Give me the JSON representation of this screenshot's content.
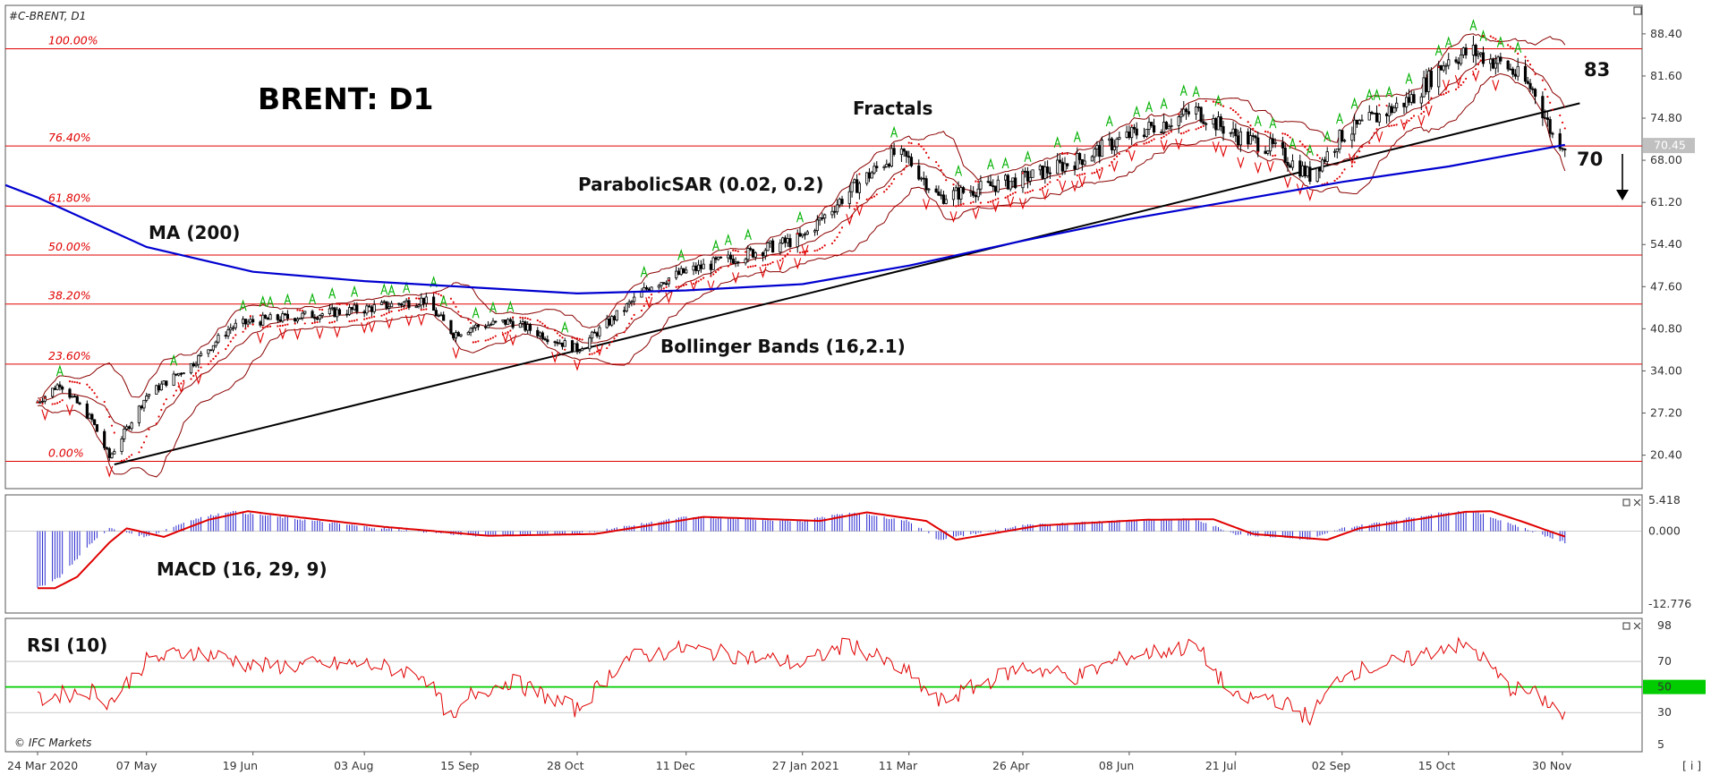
{
  "header": {
    "symbol": "#C-BRENT, D1"
  },
  "title": "BRENT: D1",
  "branding": "© IFC Markets",
  "corner_glyph": "[ i ]",
  "annotations": {
    "fractals": "Fractals",
    "parabolic_sar": "ParabolicSAR (0.02, 0.2)",
    "ma": "MA (200)",
    "bollinger": "Bollinger Bands (16,2.1)",
    "macd": "MACD (16, 29, 9)",
    "rsi": "RSI (10)",
    "resistance_level": "83",
    "support_level": "70"
  },
  "colors": {
    "fib_lines": "#e00000",
    "ma200": "#0000d0",
    "bollinger": "#8b0000",
    "sar": "#e00000",
    "fractal_up": "#00b000",
    "fractal_down": "#e00000",
    "trendline": "#000000",
    "macd_hist": "#2a2ad0",
    "macd_signal": "#e00000",
    "rsi_line": "#e00000",
    "rsi_mid": "#00cc00",
    "price_tag_bg": "#c0c0c0"
  },
  "chart_data": [
    {
      "type": "candlestick",
      "title": "BRENT: D1",
      "ylim": [
        15.0,
        93.0
      ],
      "y_ticks": [
        "88.40",
        "81.60",
        "74.80",
        "68.00",
        "61.20",
        "54.40",
        "47.60",
        "40.80",
        "34.00",
        "27.20",
        "20.40"
      ],
      "current_price": "70.45",
      "x_ticks": [
        "24 Mar 2020",
        "07 May",
        "19 Jun",
        "03 Aug",
        "15 Sep",
        "28 Oct",
        "11 Dec",
        "27 Jan 2021",
        "11 Mar",
        "26 Apr",
        "08 Jun",
        "21 Jul",
        "02 Sep",
        "15 Oct",
        "30 Nov"
      ],
      "fibonacci": [
        {
          "label": "100.00%",
          "value": 86.0
        },
        {
          "label": "76.40%",
          "value": 70.3
        },
        {
          "label": "61.80%",
          "value": 60.6
        },
        {
          "label": "50.00%",
          "value": 52.7
        },
        {
          "label": "38.20%",
          "value": 44.8
        },
        {
          "label": "23.60%",
          "value": 35.1
        },
        {
          "label": "0.00%",
          "value": 19.4
        }
      ],
      "trendline": {
        "from": [
          "24 Apr 2020",
          18.9
        ],
        "to": [
          "07 Dec 2021",
          77.2
        ]
      },
      "price_path": [
        [
          "24 Mar 2020",
          29
        ],
        [
          "02 Apr",
          32
        ],
        [
          "15 Apr",
          26
        ],
        [
          "22 Apr",
          20
        ],
        [
          "07 May",
          30
        ],
        [
          "25 May",
          35
        ],
        [
          "10 Jun",
          41
        ],
        [
          "19 Jun",
          42
        ],
        [
          "03 Aug",
          44
        ],
        [
          "27 Aug",
          45.5
        ],
        [
          "08 Sep",
          40
        ],
        [
          "15 Sep",
          41
        ],
        [
          "01 Oct",
          42
        ],
        [
          "28 Oct",
          37.5
        ],
        [
          "16 Nov",
          44
        ],
        [
          "27 Nov",
          48
        ],
        [
          "11 Dec",
          50
        ],
        [
          "27 Jan 2021",
          55.5
        ],
        [
          "15 Feb",
          63
        ],
        [
          "05 Mar",
          69
        ],
        [
          "11 Mar",
          68
        ],
        [
          "23 Mar",
          62
        ],
        [
          "26 Apr",
          65
        ],
        [
          "18 May",
          68
        ],
        [
          "08 Jun",
          72
        ],
        [
          "05 Jul",
          76
        ],
        [
          "21 Jul",
          72
        ],
        [
          "05 Aug",
          70
        ],
        [
          "20 Aug",
          65.5
        ],
        [
          "02 Sep",
          72
        ],
        [
          "30 Sep",
          78
        ],
        [
          "15 Oct",
          84.5
        ],
        [
          "25 Oct",
          85.5
        ],
        [
          "08 Nov",
          83
        ],
        [
          "19 Nov",
          79
        ],
        [
          "26 Nov",
          72
        ],
        [
          "01 Dec",
          70.45
        ]
      ],
      "ma200_path": [
        [
          "24 Mar 2020",
          62
        ],
        [
          "07 May",
          54
        ],
        [
          "19 Jun",
          50
        ],
        [
          "03 Aug",
          48.5
        ],
        [
          "15 Sep",
          47.5
        ],
        [
          "28 Oct",
          46.5
        ],
        [
          "11 Dec",
          47
        ],
        [
          "27 Jan 2021",
          48
        ],
        [
          "11 Mar",
          51
        ],
        [
          "26 Apr",
          55
        ],
        [
          "08 Jun",
          58.5
        ],
        [
          "21 Jul",
          61.5
        ],
        [
          "02 Sep",
          64.5
        ],
        [
          "15 Oct",
          67
        ],
        [
          "01 Dec",
          70.5
        ]
      ]
    },
    {
      "type": "histogram",
      "title": "MACD (16, 29, 9)",
      "ylim": [
        -12.776,
        5.418
      ],
      "y_ticks": [
        "5.418",
        "0.000",
        "-12.776"
      ],
      "series": [
        {
          "name": "MACD",
          "path": [
            [
              "24 Mar 2020",
              -10
            ],
            [
              "02 Apr",
              -8
            ],
            [
              "15 Apr",
              -2
            ],
            [
              "22 Apr",
              0.5
            ],
            [
              "07 May",
              -1
            ],
            [
              "25 May",
              2
            ],
            [
              "10 Jun",
              3.5
            ],
            [
              "19 Jun",
              3
            ],
            [
              "03 Aug",
              0.8
            ],
            [
              "15 Sep",
              -0.8
            ],
            [
              "28 Oct",
              -0.5
            ],
            [
              "11 Dec",
              2.5
            ],
            [
              "27 Jan 2021",
              1.8
            ],
            [
              "15 Feb",
              3.3
            ],
            [
              "11 Mar",
              1.8
            ],
            [
              "23 Mar",
              -1.5
            ],
            [
              "26 Apr",
              1
            ],
            [
              "08 Jun",
              2
            ],
            [
              "05 Jul",
              2.1
            ],
            [
              "21 Jul",
              -0.5
            ],
            [
              "20 Aug",
              -1.5
            ],
            [
              "02 Sep",
              0.5
            ],
            [
              "15 Oct",
              3.4
            ],
            [
              "25 Oct",
              3.5
            ],
            [
              "08 Nov",
              1.5
            ],
            [
              "19 Nov",
              -0.2
            ],
            [
              "01 Dec",
              -2
            ]
          ]
        }
      ]
    },
    {
      "type": "line",
      "title": "RSI (10)",
      "ylim": [
        5,
        98
      ],
      "y_ticks": [
        "98",
        "70",
        "50",
        "30",
        "5"
      ],
      "middle_level": "50",
      "series": [
        {
          "name": "RSI",
          "path": [
            [
              "24 Mar 2020",
              40
            ],
            [
              "02 Apr",
              44
            ],
            [
              "15 Apr",
              47
            ],
            [
              "22 Apr",
              38
            ],
            [
              "07 May",
              70
            ],
            [
              "25 May",
              78
            ],
            [
              "10 Jun",
              72
            ],
            [
              "19 Jun",
              66
            ],
            [
              "03 Aug",
              68
            ],
            [
              "27 Aug",
              60
            ],
            [
              "08 Sep",
              22
            ],
            [
              "15 Sep",
              44
            ],
            [
              "01 Oct",
              55
            ],
            [
              "28 Oct",
              32
            ],
            [
              "16 Nov",
              72
            ],
            [
              "11 Dec",
              80
            ],
            [
              "27 Jan 2021",
              68
            ],
            [
              "15 Feb",
              84
            ],
            [
              "11 Mar",
              60
            ],
            [
              "23 Mar",
              38
            ],
            [
              "26 Apr",
              66
            ],
            [
              "18 May",
              58
            ],
            [
              "08 Jun",
              74
            ],
            [
              "05 Jul",
              82
            ],
            [
              "21 Jul",
              40
            ],
            [
              "05 Aug",
              42
            ],
            [
              "20 Aug",
              26
            ],
            [
              "02 Sep",
              60
            ],
            [
              "30 Sep",
              72
            ],
            [
              "15 Oct",
              83
            ],
            [
              "25 Oct",
              80
            ],
            [
              "08 Nov",
              50
            ],
            [
              "19 Nov",
              44
            ],
            [
              "26 Nov",
              36
            ],
            [
              "01 Dec",
              25
            ]
          ]
        }
      ]
    }
  ]
}
